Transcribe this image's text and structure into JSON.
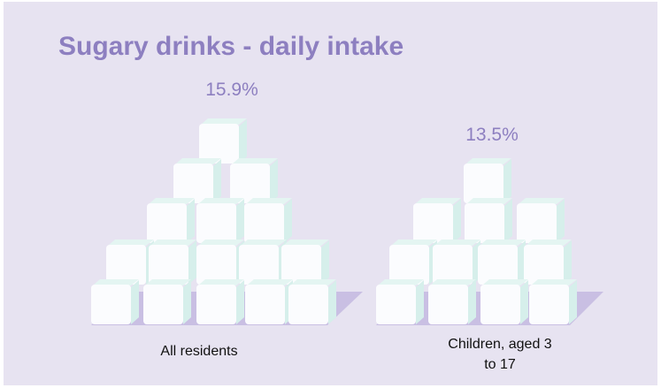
{
  "chart_data": {
    "type": "pictorial",
    "title": "Sugary drinks - daily intake",
    "categories": [
      "All residents",
      "Children, aged 3 to 17"
    ],
    "values": [
      15.9,
      13.5
    ],
    "value_labels": [
      "15.9%",
      "13.5%"
    ],
    "color": "#8d7fc0"
  }
}
